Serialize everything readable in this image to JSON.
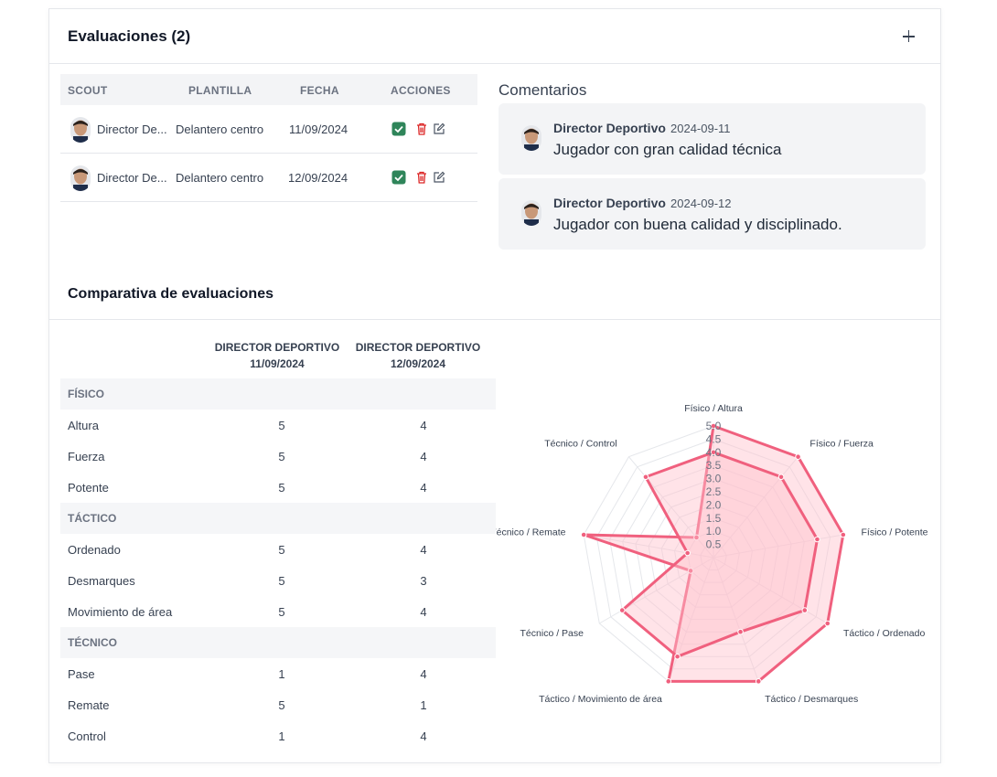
{
  "header": {
    "title": "Evaluaciones (2)"
  },
  "eval_table": {
    "columns": [
      "SCOUT",
      "PLANTILLA",
      "FECHA",
      "ACCIONES"
    ],
    "rows": [
      {
        "scout": "Director De...",
        "plantilla": "Delantero centro",
        "fecha": "11/09/2024"
      },
      {
        "scout": "Director De...",
        "plantilla": "Delantero centro",
        "fecha": "12/09/2024"
      }
    ]
  },
  "comments": {
    "title": "Comentarios",
    "items": [
      {
        "author": "Director Deportivo",
        "date": "2024-09-11",
        "text": "Jugador con gran calidad técnica"
      },
      {
        "author": "Director Deportivo",
        "date": "2024-09-12",
        "text": "Jugador con buena calidad y disciplinado."
      }
    ]
  },
  "comparison": {
    "title": "Comparativa de evaluaciones",
    "columns": [
      {
        "name": "DIRECTOR DEPORTIVO",
        "date": "11/09/2024"
      },
      {
        "name": "DIRECTOR DEPORTIVO",
        "date": "12/09/2024"
      }
    ],
    "groups": [
      {
        "name": "FÍSICO",
        "rows": [
          {
            "label": "Altura",
            "a": "5",
            "b": "4"
          },
          {
            "label": "Fuerza",
            "a": "5",
            "b": "4"
          },
          {
            "label": "Potente",
            "a": "5",
            "b": "4"
          }
        ]
      },
      {
        "name": "TÁCTICO",
        "rows": [
          {
            "label": "Ordenado",
            "a": "5",
            "b": "4"
          },
          {
            "label": "Desmarques",
            "a": "5",
            "b": "3"
          },
          {
            "label": "Movimiento de área",
            "a": "5",
            "b": "4"
          }
        ]
      },
      {
        "name": "TÉCNICO",
        "rows": [
          {
            "label": "Pase",
            "a": "1",
            "b": "4"
          },
          {
            "label": "Remate",
            "a": "5",
            "b": "1"
          },
          {
            "label": "Control",
            "a": "1",
            "b": "4"
          }
        ]
      }
    ]
  },
  "chart_data": {
    "type": "radar",
    "axes": [
      "Físico / Altura",
      "Físico / Fuerza",
      "Físico / Potente",
      "Táctico / Ordenado",
      "Táctico / Desmarques",
      "Táctico / Movimiento de área",
      "Técnico / Pase",
      "Técnico / Remate",
      "Técnico / Control"
    ],
    "ticks": [
      "0.5",
      "1.0",
      "1.5",
      "2.0",
      "2.5",
      "3.0",
      "3.5",
      "4.0",
      "4.5",
      "5.0"
    ],
    "rmax": 5,
    "series": [
      {
        "values": [
          5,
          5,
          5,
          5,
          5,
          5,
          1,
          5,
          1
        ]
      },
      {
        "values": [
          4,
          4,
          4,
          4,
          3,
          4,
          4,
          1,
          4
        ]
      }
    ],
    "colors": {
      "line": "#f0607e",
      "fill": "#ffc0cb",
      "grid": "#e5e7eb"
    }
  },
  "icons": {
    "approve": "check-square-icon",
    "delete": "trash-icon",
    "edit": "edit-icon",
    "add": "plus-icon"
  },
  "colors": {
    "approve": "#2f855a",
    "delete": "#dc2626"
  }
}
